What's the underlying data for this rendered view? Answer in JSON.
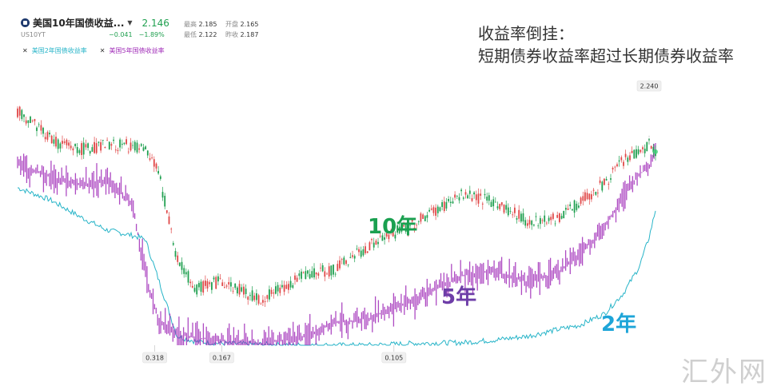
{
  "instrument": {
    "name": "美国10年国债收益...",
    "symbol": "US10YT",
    "price": "2.146",
    "change": "−0.041",
    "change_pct": "−1.89%",
    "stats": {
      "high_label": "最高",
      "high": "2.185",
      "open_label": "开盘",
      "open": "2.165",
      "low_label": "最低",
      "low": "2.122",
      "prev_label": "昨收",
      "prev": "2.187"
    },
    "colors": {
      "up": "#e04848",
      "down": "#20a050",
      "brand": "#1f3a6e"
    }
  },
  "legend": [
    {
      "label": "美国2年国债收益率",
      "color": "#27b4c8"
    },
    {
      "label": "美国5年国债收益率",
      "color": "#a02cb8"
    }
  ],
  "title": {
    "line1": "收益率倒挂：",
    "line2": "短期债券收益率超过长期债券收益率"
  },
  "watermark": "汇外网",
  "chart_data": {
    "type": "line",
    "x_domain": [
      0,
      1
    ],
    "y_scale": "unlabeled",
    "series": [
      {
        "name": "10年",
        "style": "candlestick",
        "color_up": "#e04848",
        "color_down": "#20a050",
        "x": [
          0,
          0.03,
          0.06,
          0.1,
          0.14,
          0.18,
          0.2,
          0.22,
          0.25,
          0.28,
          0.32,
          0.38,
          0.45,
          0.5,
          0.55,
          0.62,
          0.7,
          0.75,
          0.8,
          0.85,
          0.88,
          0.92,
          0.95,
          0.975,
          0.99,
          1
        ],
        "y": [
          2.6,
          2.45,
          2.25,
          2.18,
          2.22,
          2.22,
          2.15,
          1.95,
          0.95,
          0.62,
          0.72,
          0.5,
          0.78,
          0.85,
          1.1,
          1.35,
          1.68,
          1.58,
          1.38,
          1.42,
          1.58,
          1.8,
          2.05,
          2.15,
          2.24,
          2.15
        ]
      },
      {
        "name": "5年",
        "color": "#a02cb8",
        "x": [
          0,
          0.05,
          0.1,
          0.14,
          0.18,
          0.2,
          0.22,
          0.25,
          0.28,
          0.32,
          0.38,
          0.45,
          0.5,
          0.55,
          0.62,
          0.7,
          0.75,
          0.8,
          0.85,
          0.88,
          0.92,
          0.95,
          0.975,
          0.99,
          1
        ],
        "y": [
          2.0,
          1.88,
          1.78,
          1.82,
          1.58,
          0.78,
          0.3,
          0.12,
          0.08,
          0.05,
          0.02,
          0.1,
          0.25,
          0.3,
          0.5,
          0.78,
          0.82,
          0.7,
          0.82,
          1.0,
          1.3,
          1.65,
          1.9,
          2.0,
          2.2
        ]
      },
      {
        "name": "2年",
        "color": "#27b4c8",
        "x": [
          0,
          0.05,
          0.1,
          0.14,
          0.18,
          0.2,
          0.22,
          0.25,
          0.28,
          0.32,
          0.38,
          0.45,
          0.5,
          0.55,
          0.62,
          0.7,
          0.75,
          0.8,
          0.85,
          0.88,
          0.92,
          0.95,
          0.975,
          0.99,
          1
        ],
        "y": [
          1.75,
          1.62,
          1.42,
          1.28,
          1.22,
          1.18,
          0.75,
          0.1,
          0.04,
          0.02,
          0.01,
          0.0,
          0.0,
          0.0,
          0.02,
          0.03,
          0.06,
          0.1,
          0.18,
          0.22,
          0.35,
          0.58,
          0.88,
          1.2,
          1.5
        ]
      }
    ],
    "annotations": {
      "series_labels": [
        {
          "text": "10年",
          "color": "#1aa050"
        },
        {
          "text": "5年",
          "color": "#6e3ea8"
        },
        {
          "text": "2年",
          "color": "#1ea5d8"
        }
      ],
      "x_markers": [
        {
          "text": "0.318",
          "x": 0.215
        },
        {
          "text": "0.167",
          "x": 0.32
        },
        {
          "text": "0.105",
          "x": 0.59
        }
      ],
      "high_marker": {
        "text": "2.240",
        "x": 0.99
      }
    },
    "title": "",
    "xlabel": "",
    "ylabel": "",
    "grid": false
  }
}
